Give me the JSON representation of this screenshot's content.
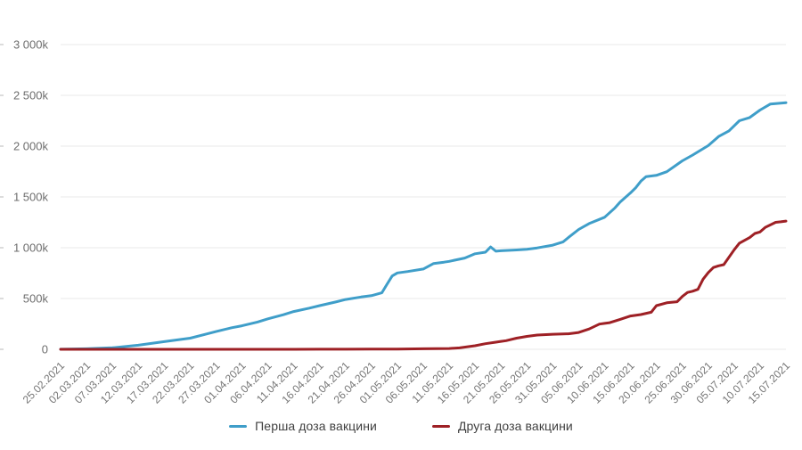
{
  "chart_data": {
    "type": "line",
    "title": "",
    "xlabel": "",
    "ylabel": "",
    "x_tick_labels": [
      "25.02.2021",
      "02.03.2021",
      "07.03.2021",
      "12.03.2021",
      "17.03.2021",
      "22.03.2021",
      "27.03.2021",
      "01.04.2021",
      "06.04.2021",
      "11.04.2021",
      "16.04.2021",
      "21.04.2021",
      "26.04.2021",
      "01.05.2021",
      "06.05.2021",
      "11.05.2021",
      "16.05.2021",
      "21.05.2021",
      "26.05.2021",
      "31.05.2021",
      "05.06.2021",
      "10.06.2021",
      "15.06.2021",
      "20.06.2021",
      "25.06.2021",
      "30.06.2021",
      "05.07.2021",
      "10.07.2021",
      "15.07.2021"
    ],
    "x_tick_interval_days": 5,
    "xlim_days": [
      0,
      140
    ],
    "y_tick_values": [
      0,
      500,
      1000,
      1500,
      2000,
      2500,
      3000
    ],
    "y_tick_labels": [
      "0",
      "500k",
      "1 000k",
      "1 500k",
      "2 000k",
      "2 500k",
      "3 000k"
    ],
    "y_unit": "thousands of doses (k)",
    "ylim": [
      0,
      3000
    ],
    "grid": "horizontal",
    "legend_position": "bottom-center",
    "colors": {
      "grid": "#e9e9e9",
      "axis_tick": "#cccccc",
      "y_label": "#6e6e6e",
      "x_label": "#757575",
      "legend_text": "#3f3f3f"
    },
    "series": [
      {
        "key": "first-dose",
        "name": "Перша доза вакцини",
        "color": "#3f9ec9",
        "points_day_valuek": [
          [
            0,
            1
          ],
          [
            5,
            5
          ],
          [
            10,
            15
          ],
          [
            15,
            40
          ],
          [
            20,
            75
          ],
          [
            25,
            110
          ],
          [
            28,
            148
          ],
          [
            30,
            175
          ],
          [
            33,
            212
          ],
          [
            35,
            232
          ],
          [
            38,
            268
          ],
          [
            40,
            300
          ],
          [
            43,
            340
          ],
          [
            45,
            372
          ],
          [
            48,
            405
          ],
          [
            50,
            430
          ],
          [
            53,
            465
          ],
          [
            55,
            490
          ],
          [
            58,
            515
          ],
          [
            60,
            528
          ],
          [
            62,
            556
          ],
          [
            63,
            640
          ],
          [
            64,
            722
          ],
          [
            65,
            752
          ],
          [
            67,
            766
          ],
          [
            70,
            790
          ],
          [
            72,
            845
          ],
          [
            74,
            858
          ],
          [
            75,
            866
          ],
          [
            78,
            898
          ],
          [
            80,
            940
          ],
          [
            82,
            956
          ],
          [
            83,
            1008
          ],
          [
            84,
            966
          ],
          [
            85,
            970
          ],
          [
            88,
            978
          ],
          [
            90,
            985
          ],
          [
            92,
            998
          ],
          [
            95,
            1025
          ],
          [
            97,
            1058
          ],
          [
            98,
            1100
          ],
          [
            100,
            1180
          ],
          [
            102,
            1238
          ],
          [
            105,
            1300
          ],
          [
            107,
            1392
          ],
          [
            108,
            1450
          ],
          [
            110,
            1540
          ],
          [
            111,
            1590
          ],
          [
            112,
            1655
          ],
          [
            113,
            1700
          ],
          [
            115,
            1712
          ],
          [
            117,
            1748
          ],
          [
            120,
            1855
          ],
          [
            122,
            1912
          ],
          [
            125,
            2005
          ],
          [
            127,
            2095
          ],
          [
            129,
            2150
          ],
          [
            130,
            2200
          ],
          [
            131,
            2250
          ],
          [
            133,
            2282
          ],
          [
            135,
            2355
          ],
          [
            137,
            2415
          ],
          [
            140,
            2428
          ]
        ]
      },
      {
        "key": "second-dose",
        "name": "Друга доза вакцини",
        "color": "#9e2025",
        "points_day_valuek": [
          [
            0,
            0
          ],
          [
            10,
            0
          ],
          [
            20,
            0
          ],
          [
            30,
            0
          ],
          [
            40,
            0
          ],
          [
            45,
            0
          ],
          [
            50,
            1
          ],
          [
            55,
            1
          ],
          [
            60,
            2
          ],
          [
            65,
            3
          ],
          [
            70,
            5
          ],
          [
            75,
            8
          ],
          [
            77,
            14
          ],
          [
            80,
            35
          ],
          [
            82,
            55
          ],
          [
            84,
            70
          ],
          [
            85,
            78
          ],
          [
            86,
            85
          ],
          [
            88,
            110
          ],
          [
            90,
            127
          ],
          [
            92,
            140
          ],
          [
            95,
            148
          ],
          [
            98,
            153
          ],
          [
            100,
            166
          ],
          [
            102,
            200
          ],
          [
            104,
            248
          ],
          [
            105,
            255
          ],
          [
            106,
            262
          ],
          [
            108,
            295
          ],
          [
            110,
            328
          ],
          [
            112,
            342
          ],
          [
            114,
            365
          ],
          [
            115,
            430
          ],
          [
            117,
            458
          ],
          [
            119,
            468
          ],
          [
            120,
            520
          ],
          [
            121,
            560
          ],
          [
            122,
            572
          ],
          [
            123,
            590
          ],
          [
            124,
            690
          ],
          [
            125,
            755
          ],
          [
            126,
            805
          ],
          [
            127,
            822
          ],
          [
            128,
            833
          ],
          [
            130,
            980
          ],
          [
            131,
            1045
          ],
          [
            133,
            1100
          ],
          [
            134,
            1140
          ],
          [
            135,
            1155
          ],
          [
            136,
            1200
          ],
          [
            138,
            1250
          ],
          [
            139,
            1255
          ],
          [
            140,
            1262
          ]
        ]
      }
    ]
  }
}
